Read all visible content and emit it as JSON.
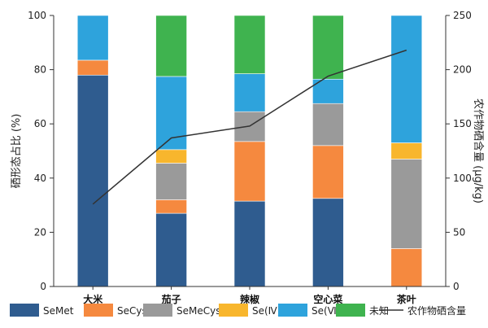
{
  "chart_data": {
    "type": "bar",
    "stacked": true,
    "categories": [
      "大米",
      "茄子",
      "辣椒",
      "空心菜",
      "茶叶"
    ],
    "series": [
      {
        "name": "SeMet",
        "color": "#2f5c8f",
        "values": [
          78,
          27,
          31.5,
          32.5,
          0
        ]
      },
      {
        "name": "SeCys₂",
        "color": "#f5893f",
        "values": [
          5.5,
          5,
          22,
          19.5,
          14
        ]
      },
      {
        "name": "SeMeCys",
        "color": "#9a9a9a",
        "values": [
          0,
          13.5,
          11,
          15.5,
          33
        ]
      },
      {
        "name": "Se(Ⅳ)",
        "color": "#f8b62d",
        "values": [
          0,
          5,
          0,
          0,
          6
        ]
      },
      {
        "name": "Se(Ⅵ)",
        "color": "#2ea3dc",
        "values": [
          16.5,
          27,
          14,
          9,
          47
        ]
      },
      {
        "name": "未知",
        "color": "#3fb34f",
        "values": [
          0,
          22.5,
          21.5,
          23.5,
          0
        ]
      }
    ],
    "line": {
      "name": "农作物硒含量",
      "color": "#333333",
      "values": [
        76,
        137,
        148,
        194,
        218
      ]
    },
    "ylabel_left": "硒形态占比 (%)",
    "ylabel_right": "农作物硒含量 (μg/kg)",
    "ylim_left": [
      0,
      100
    ],
    "ylim_right": [
      0,
      250
    ],
    "yticks_left": [
      "0",
      "20",
      "40",
      "60",
      "80",
      "100"
    ],
    "yticks_right": [
      "0",
      "50",
      "100",
      "150",
      "200",
      "250"
    ],
    "grid": false,
    "legend_position": "bottom"
  }
}
